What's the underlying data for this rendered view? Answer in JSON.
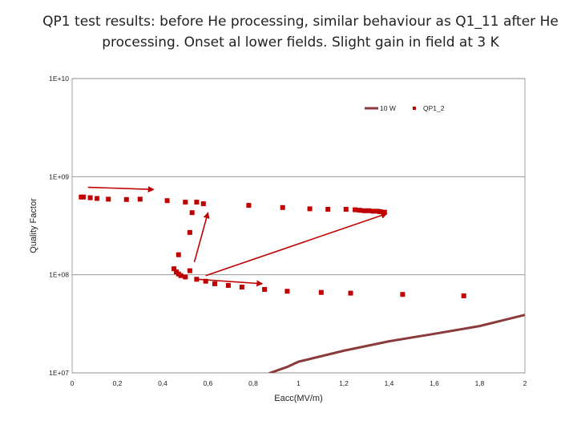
{
  "slide": {
    "title": "QP1 test results: before He processing, similar behaviour as Q1_11 after He processing. Onset al lower fields. Slight gain in field at 3 K"
  },
  "chart_data": {
    "type": "scatter",
    "xlabel": "Eacc(MV/m)",
    "ylabel": "Quality Factor",
    "xlim": [
      0,
      2
    ],
    "ylim": [
      10000000.0,
      10000000000.0
    ],
    "yscale": "log",
    "x_ticks": [
      "0",
      "0,2",
      "0,4",
      "0,6",
      "0,8",
      "1",
      "1,2",
      "1,4",
      "1,6",
      "1,8",
      "2"
    ],
    "y_ticks": [
      "1E+10",
      "1E+09",
      "1E+08",
      "1E+07"
    ],
    "legend_position": "top-right",
    "grid": "horizontal",
    "colors": {
      "line": "#8b3a3a",
      "markers": "#c00000",
      "arrows": "#c00000",
      "plot_border": "#888888",
      "gridline": "#888888"
    },
    "series": [
      {
        "name": "10 W",
        "kind": "line",
        "x": [
          0.87,
          0.95,
          1.0,
          1.2,
          1.4,
          1.6,
          1.8,
          2.0
        ],
        "y": [
          9900000.0,
          11500000.0,
          13000000.0,
          16800000.0,
          21000000.0,
          25000000.0,
          30000000.0,
          39000000.0
        ]
      },
      {
        "name": "QP1_2",
        "kind": "markers",
        "x": [
          0.04,
          0.05,
          0.08,
          0.11,
          0.16,
          0.24,
          0.3,
          0.42,
          0.5,
          0.55,
          0.58,
          0.78,
          0.93,
          1.05,
          1.13,
          1.21,
          1.25,
          1.27,
          1.29,
          1.31,
          1.33,
          1.35,
          1.36,
          1.38,
          0.53,
          0.52,
          0.47,
          0.45,
          0.46,
          0.47,
          0.48,
          0.5,
          0.52,
          0.55,
          0.59,
          0.63,
          0.69,
          0.75,
          0.85,
          0.95,
          1.1,
          1.23,
          1.46,
          1.73
        ],
        "y": [
          620000000.0,
          620000000.0,
          610000000.0,
          600000000.0,
          590000000.0,
          585000000.0,
          590000000.0,
          570000000.0,
          550000000.0,
          550000000.0,
          530000000.0,
          510000000.0,
          485000000.0,
          470000000.0,
          465000000.0,
          465000000.0,
          460000000.0,
          455000000.0,
          450000000.0,
          450000000.0,
          445000000.0,
          445000000.0,
          440000000.0,
          435000000.0,
          430000000.0,
          270000000.0,
          160000000.0,
          115000000.0,
          107000000.0,
          102000000.0,
          98000000.0,
          95000000.0,
          110000000.0,
          90000000.0,
          86000000.0,
          81000000.0,
          78000000.0,
          75000000.0,
          71000000.0,
          68000000.0,
          66000000.0,
          65000000.0,
          63000000.0,
          61000000.0
        ]
      }
    ],
    "annotations": [
      {
        "kind": "arrow",
        "from": [
          0.07,
          780000000.0
        ],
        "to": [
          0.36,
          740000000.0
        ]
      },
      {
        "kind": "arrow",
        "from": [
          0.54,
          135000000.0
        ],
        "to": [
          0.6,
          430000000.0
        ]
      },
      {
        "kind": "arrow",
        "from": [
          0.59,
          98000000.0
        ],
        "to": [
          1.39,
          420000000.0
        ]
      },
      {
        "kind": "arrow",
        "from": [
          0.55,
          90000000.0
        ],
        "to": [
          0.84,
          81000000.0
        ]
      }
    ]
  }
}
